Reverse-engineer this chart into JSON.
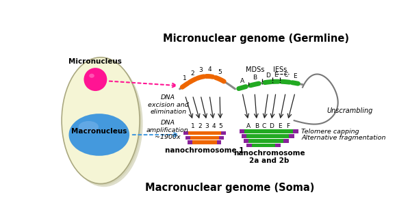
{
  "title_top": "Micronuclear genome (Germline)",
  "title_bottom": "Macronuclear genome (Soma)",
  "micronucleus_label": "Micronucleus",
  "macronucleus_label": "Macronucleus",
  "cell_color": "#f5f5d5",
  "cell_shadow": "#c0c090",
  "micronucleus_color": "#ff1493",
  "macronucleus_color": "#4499dd",
  "orange_color": "#ee6600",
  "green_color": "#22aa22",
  "purple_color": "#882299",
  "arrow_color": "#222222",
  "bg_color": "#ffffff",
  "dna_excision_label": "DNA\nexcision and\nelimination",
  "dna_amplification_label": "DNA\namplification\n~1900x",
  "nanochrom1_label": "nanochromosome 1",
  "nanochrom2_label": "nanochromosome\n2a and 2b",
  "mdss_label": "MDSs",
  "iess_label": "IESs",
  "unscrambling_label": "Unscrambling",
  "telomere_label": "Telomere capping",
  "alternative_label": "Alternative fragmentation"
}
